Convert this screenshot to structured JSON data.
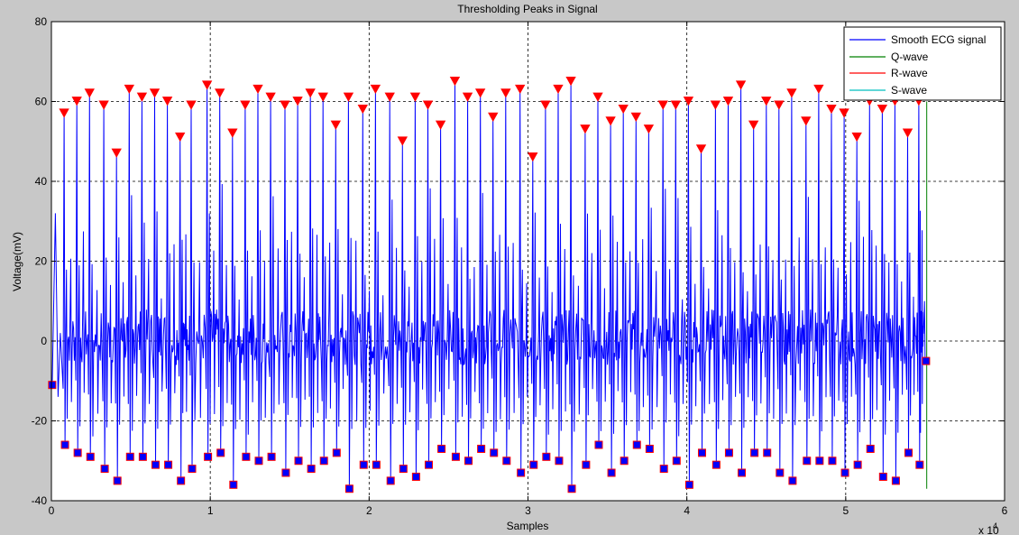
{
  "chart_data": {
    "type": "line",
    "title": "Thresholding Peaks in Signal",
    "xlabel": "Samples",
    "ylabel": "Voltage(mV)",
    "x_exponent_label": "x 10",
    "x_exponent_power": "4",
    "xlim": [
      0,
      60000
    ],
    "ylim": [
      -40,
      80
    ],
    "xticks": [
      0,
      1,
      2,
      3,
      4,
      5,
      6
    ],
    "yticks": [
      -40,
      -20,
      0,
      20,
      40,
      60,
      80
    ],
    "grid": true,
    "legend_position": "top-right",
    "colors": {
      "signal": "#0000ff",
      "q_wave": "#008000",
      "r_wave": "#ff0000",
      "s_wave": "#00bfbf",
      "marker_edge": "#ff0000"
    },
    "series": [
      {
        "name": "Smooth ECG signal"
      },
      {
        "name": "Q-wave"
      },
      {
        "name": "R-wave"
      },
      {
        "name": "S-wave"
      }
    ],
    "r_peaks": {
      "x": [
        800,
        1600,
        2400,
        3300,
        4100,
        4900,
        5700,
        6500,
        7300,
        8100,
        8800,
        9800,
        10600,
        11400,
        12200,
        13000,
        13800,
        14700,
        15500,
        16300,
        17100,
        17900,
        18700,
        19600,
        20400,
        21300,
        22100,
        22900,
        23700,
        24500,
        25400,
        26200,
        27000,
        27800,
        28600,
        29500,
        30300,
        31100,
        31900,
        32700,
        33600,
        34400,
        35200,
        36000,
        36800,
        37600,
        38500,
        39300,
        40100,
        40900,
        41800,
        42600,
        43400,
        44200,
        45000,
        45800,
        46600,
        47500,
        48300,
        49100,
        49900,
        50700,
        51500,
        52300,
        53100,
        53900,
        54600
      ],
      "y": [
        57,
        60,
        62,
        59,
        47,
        63,
        61,
        62,
        60,
        51,
        59,
        64,
        62,
        52,
        59,
        63,
        61,
        59,
        60,
        62,
        61,
        54,
        61,
        58,
        63,
        61,
        50,
        61,
        59,
        54,
        65,
        61,
        62,
        56,
        62,
        63,
        46,
        59,
        63,
        65,
        53,
        61,
        55,
        58,
        56,
        53,
        59,
        59,
        60,
        48,
        59,
        60,
        64,
        54,
        60,
        59,
        62,
        55,
        63,
        58,
        57,
        51,
        60,
        58,
        60,
        52,
        60
      ],
      "marker": "triangle-down"
    },
    "s_points": {
      "x": [
        800,
        1600,
        2400,
        3300,
        4100,
        4900,
        5700,
        6500,
        7300,
        8100,
        8800,
        9800,
        10600,
        11400,
        12200,
        13000,
        13800,
        14700,
        15500,
        16300,
        17100,
        17900,
        18700,
        19600,
        20400,
        21300,
        22100,
        22900,
        23700,
        24500,
        25400,
        26200,
        27000,
        27800,
        28600,
        29500,
        30300,
        31100,
        31900,
        32700,
        33600,
        34400,
        35200,
        36000,
        36800,
        37600,
        38500,
        39300,
        40100,
        40900,
        41800,
        42600,
        43400,
        44200,
        45000,
        45800,
        46600,
        47500,
        48300,
        49100,
        49900,
        50700,
        51500,
        52300,
        53100,
        53900,
        54600,
        55000
      ],
      "y": [
        -26,
        -28,
        -29,
        -32,
        -35,
        -29,
        -29,
        -31,
        -31,
        -35,
        -32,
        -29,
        -28,
        -36,
        -29,
        -30,
        -29,
        -33,
        -30,
        -32,
        -30,
        -28,
        -37,
        -31,
        -31,
        -35,
        -32,
        -34,
        -31,
        -27,
        -29,
        -30,
        -27,
        -28,
        -30,
        -33,
        -31,
        -29,
        -30,
        -37,
        -31,
        -26,
        -33,
        -30,
        -26,
        -27,
        -32,
        -30,
        -36,
        -28,
        -31,
        -28,
        -33,
        -28,
        -28,
        -33,
        -35,
        -30,
        -30,
        -30,
        -33,
        -31,
        -27,
        -34,
        -35,
        -28,
        -31,
        -5
      ],
      "marker": "square"
    },
    "first_point": {
      "x": 50,
      "y": -11
    }
  }
}
